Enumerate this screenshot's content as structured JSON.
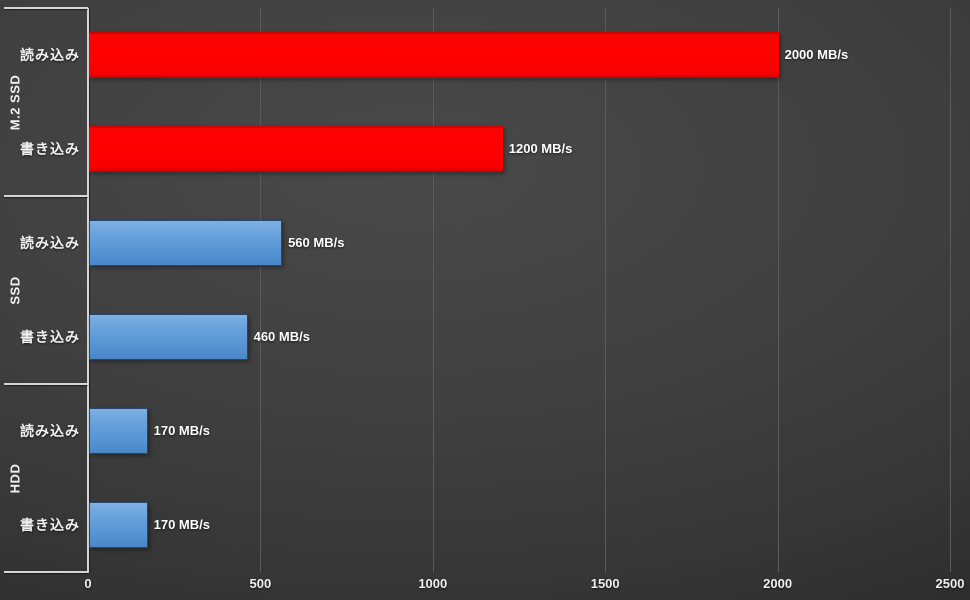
{
  "chart_data": {
    "type": "bar",
    "orientation": "horizontal",
    "title": "",
    "unit": "MB/s",
    "legend": "none",
    "grid": "vertical",
    "x_axis": {
      "min": 0,
      "max": 2500,
      "ticks": [
        0,
        500,
        1000,
        1500,
        2000,
        2500
      ],
      "tick_labels": [
        "0",
        "500",
        "1000",
        "1500",
        "2000",
        "2500"
      ]
    },
    "groups": [
      {
        "label": "M.2 SSD",
        "bar_style": "red",
        "bars": [
          {
            "category": "読み込み",
            "value": 2000,
            "data_label": "2000 MB/s"
          },
          {
            "category": "書き込み",
            "value": 1200,
            "data_label": "1200 MB/s"
          }
        ]
      },
      {
        "label": "SSD",
        "bar_style": "blue",
        "bars": [
          {
            "category": "読み込み",
            "value": 560,
            "data_label": "560 MB/s"
          },
          {
            "category": "書き込み",
            "value": 460,
            "data_label": "460 MB/s"
          }
        ]
      },
      {
        "label": "HDD",
        "bar_style": "blue",
        "bars": [
          {
            "category": "読み込み",
            "value": 170,
            "data_label": "170 MB/s"
          },
          {
            "category": "書き込み",
            "value": 170,
            "data_label": "170 MB/s"
          }
        ]
      }
    ]
  },
  "colors": {
    "m2_ssd_bar": "#fe0000",
    "ssd_bar": "#5b9ad8",
    "hdd_bar": "#5b9ad8",
    "background_center": "#464646",
    "background_edge": "#1f1f1f",
    "gridline": "#5b5b5b",
    "axis_line": "#d6d6d6",
    "text": "#ffffff"
  }
}
